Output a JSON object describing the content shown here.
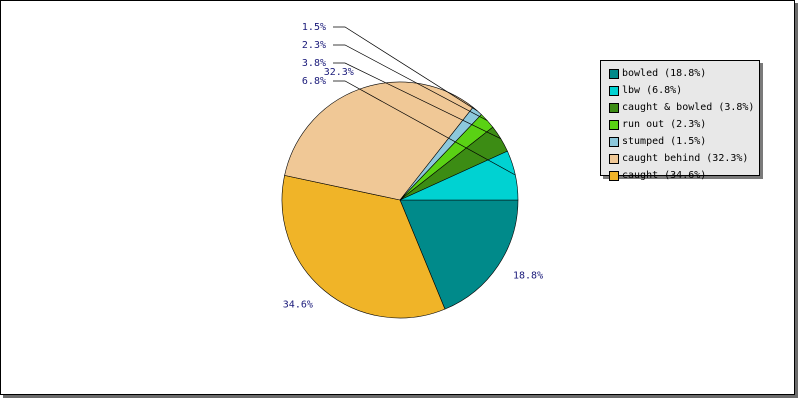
{
  "chart_data": {
    "type": "pie",
    "slices": [
      {
        "label": "bowled",
        "value": 18.8,
        "display": "18.8%",
        "legend": "bowled (18.8%)",
        "color": "#008a8a"
      },
      {
        "label": "caught",
        "value": 34.6,
        "display": "34.6%",
        "legend": "caught (34.6%)",
        "color": "#f0b428"
      },
      {
        "label": "caught behind",
        "value": 32.3,
        "display": "32.3%",
        "legend": "caught behind (32.3%)",
        "color": "#f0c896"
      },
      {
        "label": "stumped",
        "value": 1.5,
        "display": "1.5%",
        "legend": "stumped (1.5%)",
        "color": "#8cc8dc"
      },
      {
        "label": "run out",
        "value": 2.3,
        "display": "2.3%",
        "legend": "run out (2.3%)",
        "color": "#5ad214"
      },
      {
        "label": "caught & bowled",
        "value": 3.8,
        "display": "3.8%",
        "legend": "caught & bowled (3.8%)",
        "color": "#3c8c14"
      },
      {
        "label": "lbw",
        "value": 6.8,
        "display": "6.8%",
        "legend": "lbw (6.8%)",
        "color": "#00d2d2"
      }
    ],
    "legend_order": [
      "bowled",
      "lbw",
      "caught & bowled",
      "run out",
      "stumped",
      "caught behind",
      "caught"
    ],
    "legend_position": "right"
  }
}
